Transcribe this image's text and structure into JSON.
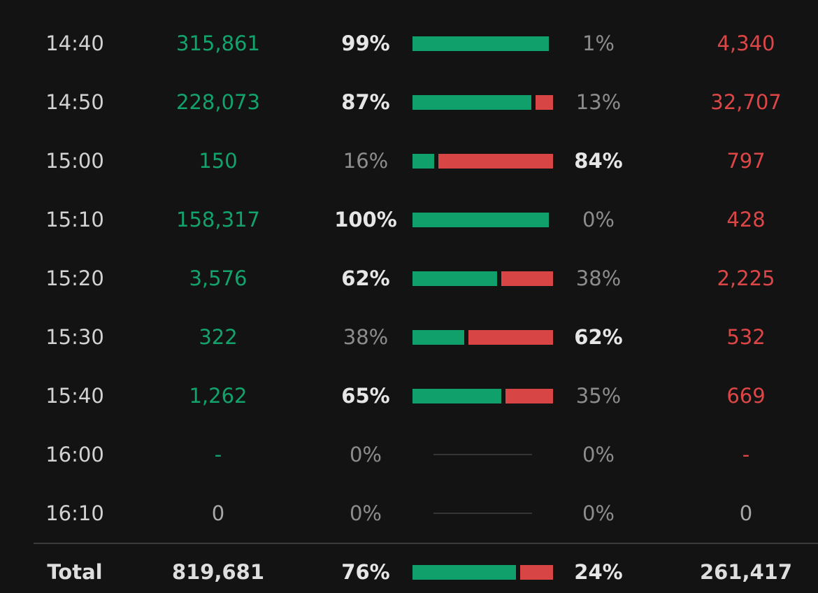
{
  "rows": [
    {
      "time": "14:40",
      "buy": "315,861",
      "buy_pct": "99%",
      "sell_pct": "1%",
      "sell": "4,340",
      "buy_frac": 0.99,
      "sell_frac": 0.01
    },
    {
      "time": "14:50",
      "buy": "228,073",
      "buy_pct": "87%",
      "sell_pct": "13%",
      "sell": "32,707",
      "buy_frac": 0.87,
      "sell_frac": 0.13
    },
    {
      "time": "15:00",
      "buy": "150",
      "buy_pct": "16%",
      "sell_pct": "84%",
      "sell": "797",
      "buy_frac": 0.16,
      "sell_frac": 0.84
    },
    {
      "time": "15:10",
      "buy": "158,317",
      "buy_pct": "100%",
      "sell_pct": "0%",
      "sell": "428",
      "buy_frac": 1.0,
      "sell_frac": 0.0
    },
    {
      "time": "15:20",
      "buy": "3,576",
      "buy_pct": "62%",
      "sell_pct": "38%",
      "sell": "2,225",
      "buy_frac": 0.62,
      "sell_frac": 0.38
    },
    {
      "time": "15:30",
      "buy": "322",
      "buy_pct": "38%",
      "sell_pct": "62%",
      "sell": "532",
      "buy_frac": 0.38,
      "sell_frac": 0.62
    },
    {
      "time": "15:40",
      "buy": "1,262",
      "buy_pct": "65%",
      "sell_pct": "35%",
      "sell": "669",
      "buy_frac": 0.65,
      "sell_frac": 0.35
    },
    {
      "time": "16:00",
      "buy": "-",
      "buy_pct": "0%",
      "sell_pct": "0%",
      "sell": "-",
      "buy_frac": 0,
      "sell_frac": 0
    },
    {
      "time": "16:10",
      "buy": "0",
      "buy_pct": "0%",
      "sell_pct": "0%",
      "sell": "0",
      "buy_frac": 0,
      "sell_frac": 0
    }
  ],
  "total": {
    "label": "Total",
    "buy": "819,681",
    "buy_pct": "76%",
    "sell_pct": "24%",
    "sell": "261,417",
    "buy_frac": 0.76,
    "sell_frac": 0.24
  },
  "colors": {
    "buy": "#0fa06b",
    "sell": "#d84545",
    "background": "#131313"
  }
}
